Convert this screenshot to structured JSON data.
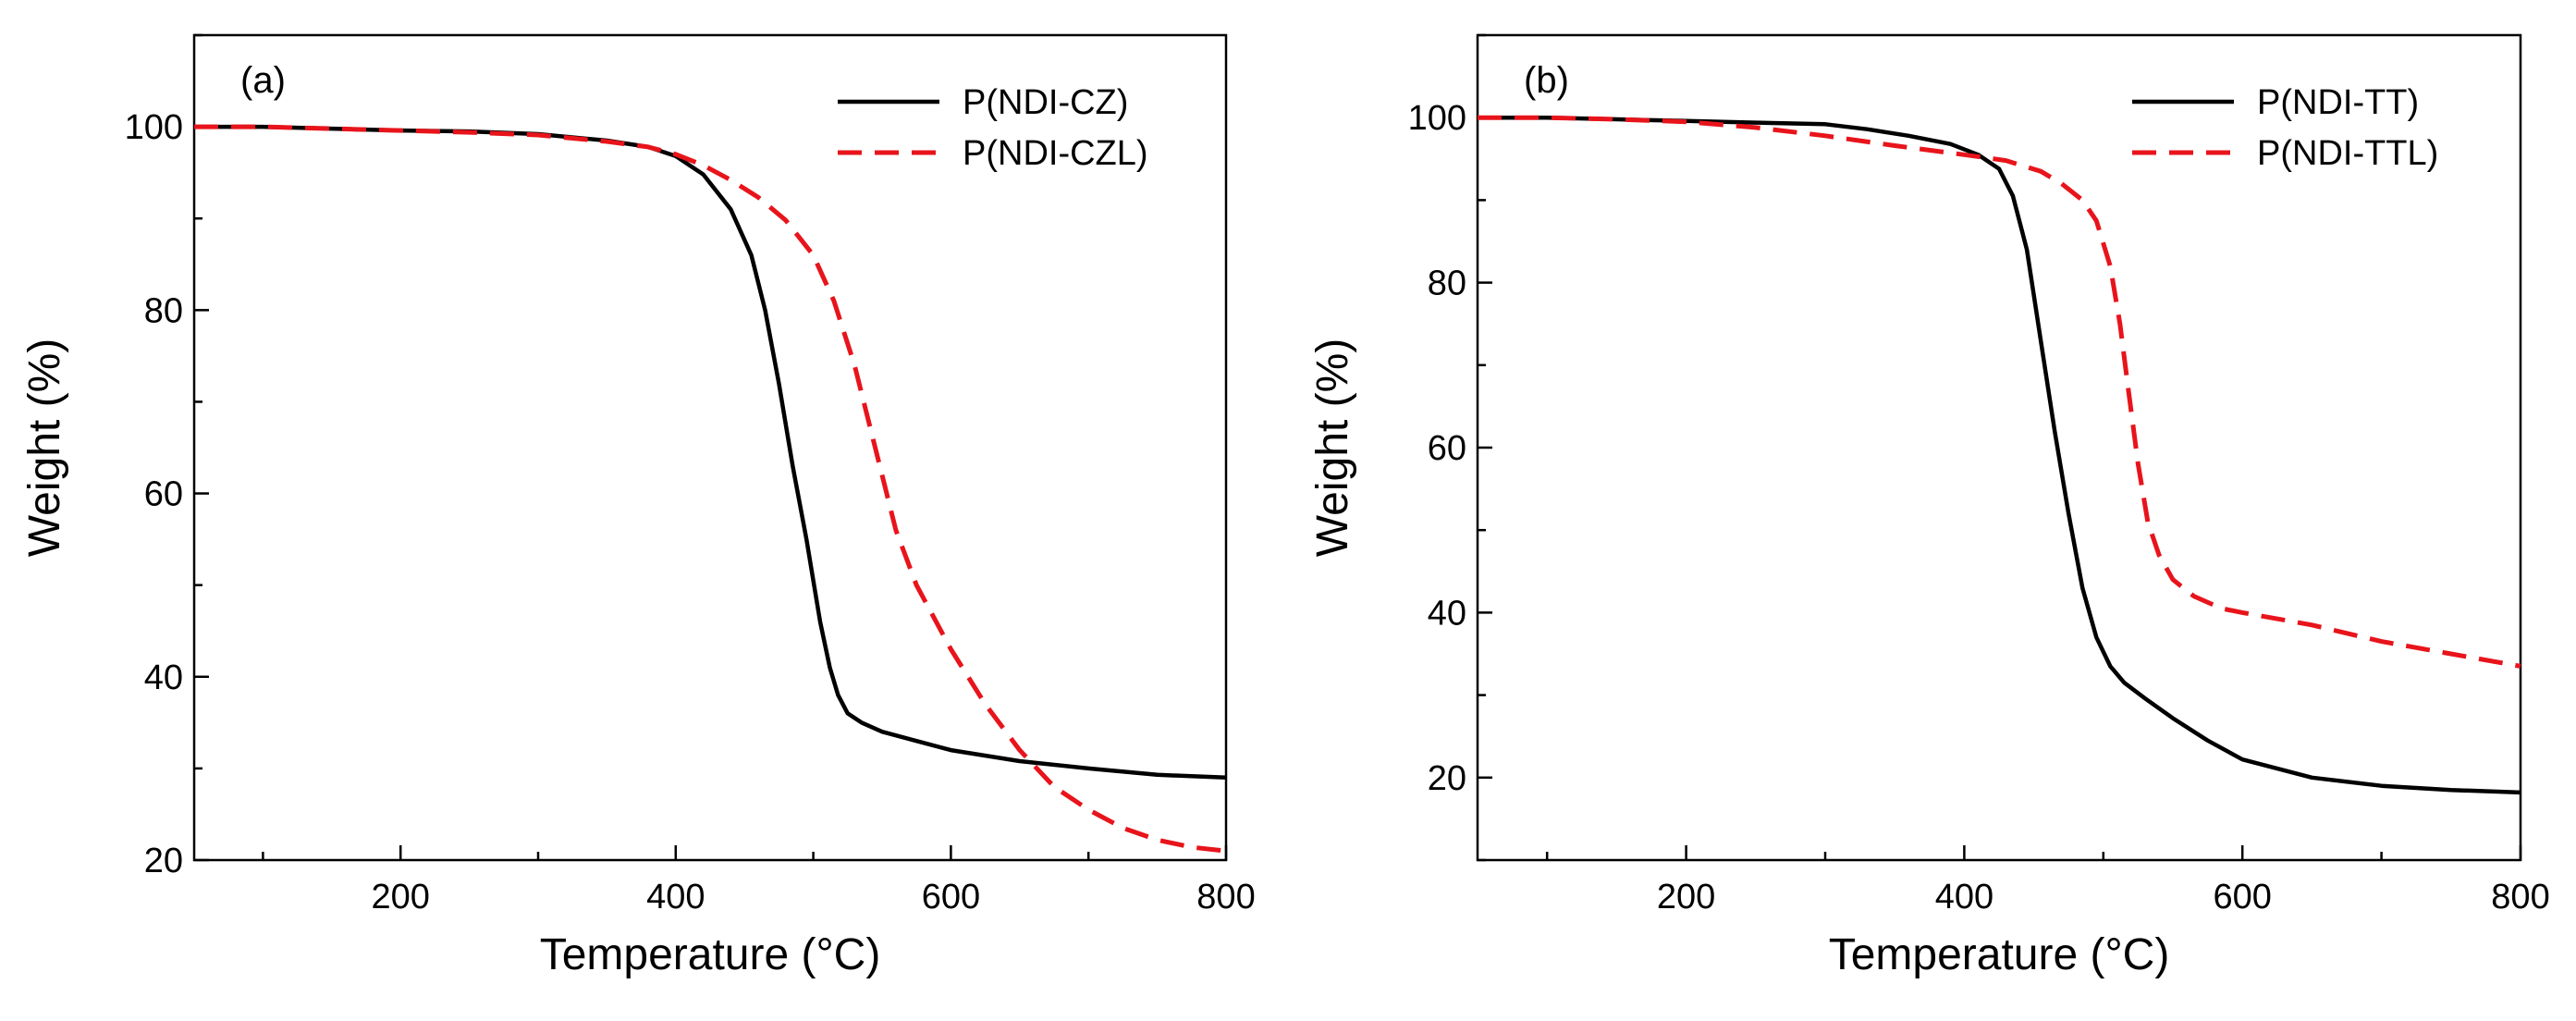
{
  "chart_data": [
    {
      "type": "line",
      "panel_label": "(a)",
      "xlabel": "Temperature (°C)",
      "ylabel": "Weight (%)",
      "xlim": [
        50,
        800
      ],
      "ylim": [
        20,
        110
      ],
      "xticks": [
        200,
        400,
        600,
        800
      ],
      "yticks": [
        20,
        40,
        60,
        80,
        100
      ],
      "grid": false,
      "legend_position": "top-right",
      "series": [
        {
          "name": "P(NDI-CZ)",
          "color": "#000000",
          "style": "solid",
          "x": [
            50,
            100,
            150,
            200,
            250,
            300,
            350,
            380,
            400,
            420,
            440,
            455,
            465,
            475,
            485,
            495,
            505,
            512,
            518,
            525,
            535,
            550,
            575,
            600,
            650,
            700,
            750,
            800
          ],
          "y": [
            100,
            100,
            99.8,
            99.6,
            99.5,
            99.2,
            98.5,
            97.8,
            96.8,
            94.8,
            91,
            86,
            80,
            72,
            63,
            55,
            46,
            41,
            38,
            36,
            35,
            34,
            33,
            32,
            30.8,
            30,
            29.3,
            29
          ]
        },
        {
          "name": "P(NDI-CZL)",
          "color": "#e8141b",
          "style": "dashed",
          "x": [
            50,
            100,
            150,
            200,
            250,
            300,
            350,
            380,
            400,
            420,
            440,
            460,
            480,
            500,
            515,
            530,
            540,
            550,
            560,
            575,
            600,
            625,
            650,
            675,
            700,
            725,
            750,
            775,
            800
          ],
          "y": [
            100,
            100,
            99.8,
            99.6,
            99.4,
            99.1,
            98.4,
            97.8,
            97,
            95.8,
            94.2,
            92.3,
            89.8,
            86,
            81,
            74,
            68,
            62,
            56,
            50,
            43,
            37,
            32,
            28,
            25.5,
            23.5,
            22.2,
            21.4,
            21
          ]
        }
      ]
    },
    {
      "type": "line",
      "panel_label": "(b)",
      "xlabel": "Temperature (°C)",
      "ylabel": "Weight (%)",
      "xlim": [
        50,
        800
      ],
      "ylim": [
        10,
        110
      ],
      "xticks": [
        200,
        400,
        600,
        800
      ],
      "yticks": [
        20,
        40,
        60,
        80,
        100
      ],
      "grid": false,
      "legend_position": "top-right",
      "series": [
        {
          "name": "P(NDI-TT)",
          "color": "#000000",
          "style": "solid",
          "x": [
            50,
            100,
            150,
            200,
            250,
            300,
            330,
            360,
            390,
            410,
            425,
            435,
            445,
            455,
            465,
            475,
            485,
            495,
            505,
            515,
            530,
            550,
            575,
            600,
            650,
            700,
            750,
            800
          ],
          "y": [
            100,
            100,
            99.8,
            99.6,
            99.4,
            99.2,
            98.6,
            97.8,
            96.8,
            95.5,
            93.8,
            90.5,
            84,
            73,
            62,
            52,
            43,
            37,
            33.5,
            31.5,
            29.6,
            27.2,
            24.5,
            22.2,
            20,
            19,
            18.5,
            18.2
          ]
        },
        {
          "name": "P(NDI-TTL)",
          "color": "#e8141b",
          "style": "dashed",
          "x": [
            50,
            100,
            150,
            200,
            250,
            300,
            350,
            400,
            430,
            455,
            470,
            485,
            495,
            505,
            512,
            518,
            525,
            532,
            540,
            550,
            565,
            585,
            600,
            650,
            700,
            750,
            800
          ],
          "y": [
            100,
            100,
            99.8,
            99.5,
            98.8,
            97.8,
            96.6,
            95.5,
            94.8,
            93.5,
            92,
            90,
            87.5,
            82,
            75,
            67,
            58,
            51,
            47,
            44,
            42,
            40.5,
            40,
            38.5,
            36.5,
            35,
            33.5
          ]
        }
      ]
    }
  ]
}
